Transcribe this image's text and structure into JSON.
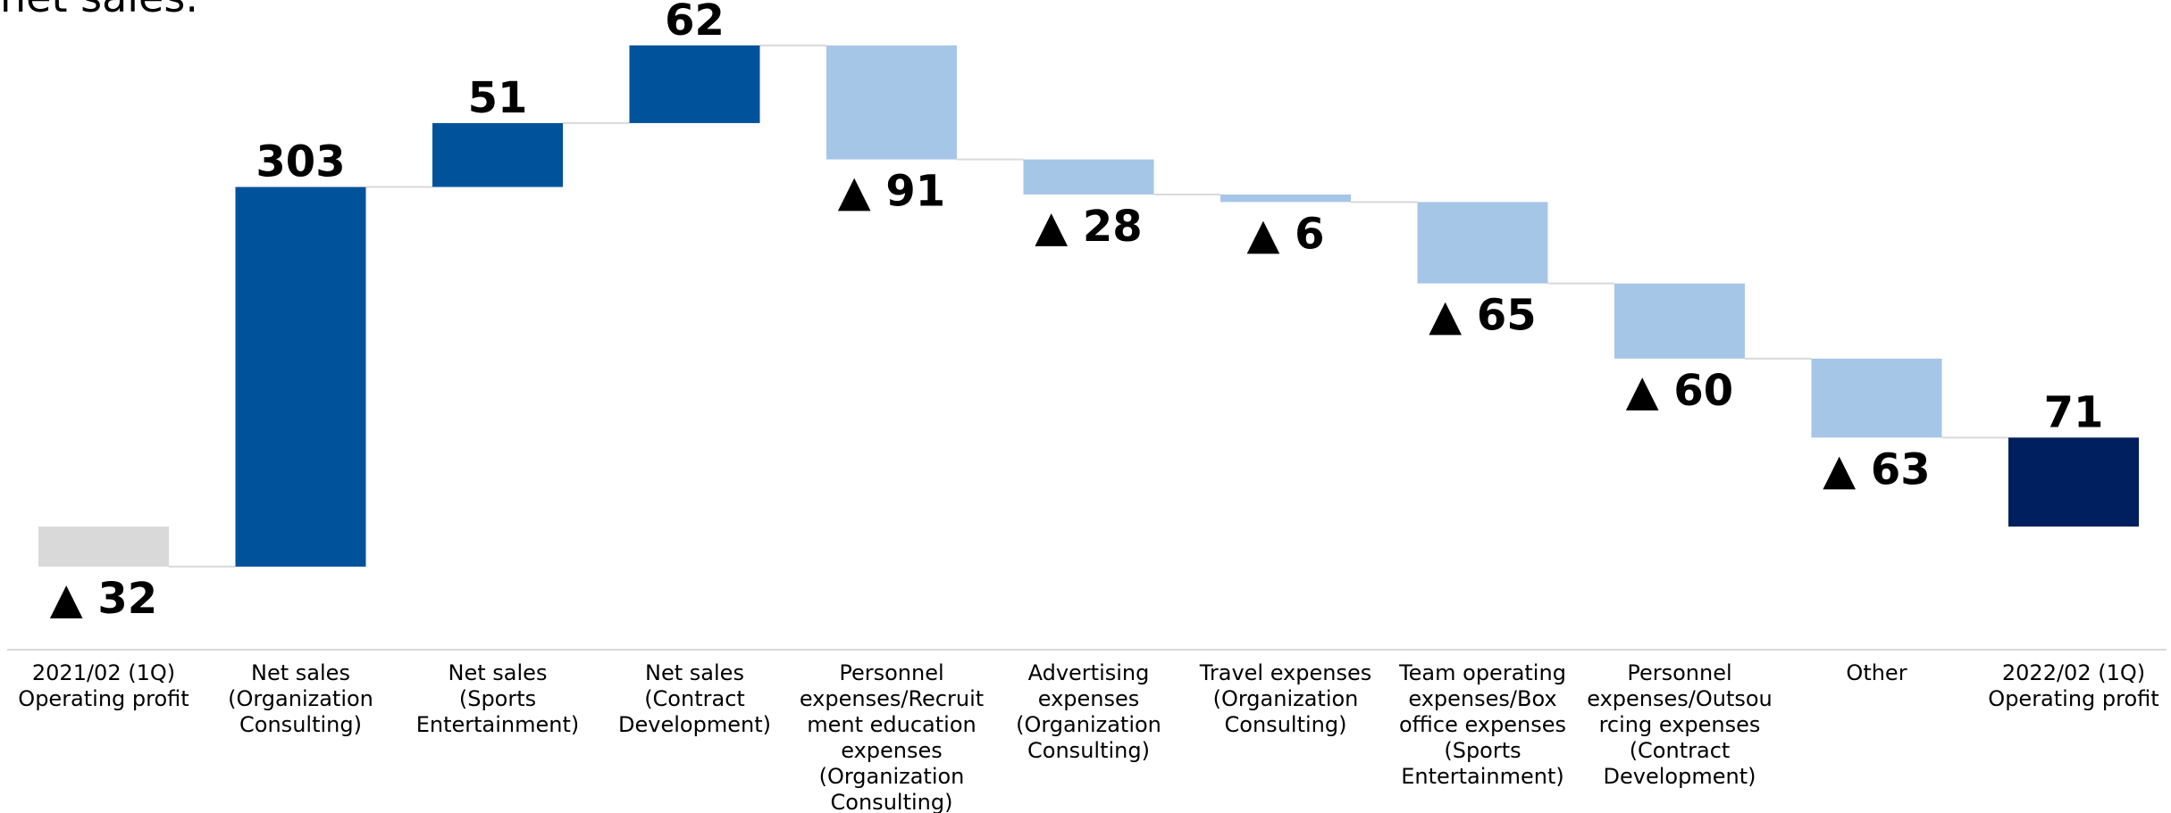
{
  "chart_data": {
    "type": "waterfall",
    "title": "net sales.",
    "categories": [
      "2021/02 (1Q)\nOperating profit",
      "Net sales\n(Organization\nConsulting)",
      "Net sales\n(Sports\nEntertainment)",
      "Net sales\n(Contract\nDevelopment)",
      "Personnel\nexpenses/Recruit\nment education\nexpenses\n(Organization\nConsulting)",
      "Advertising\nexpenses\n(Organization\nConsulting)",
      "Travel expenses\n(Organization\nConsulting)",
      "Team operating\nexpenses/Box\noffice expenses\n(Sports\nEntertainment)",
      "Personnel\nexpenses/Outsou\nrcing expenses\n(Contract\nDevelopment)",
      "Other",
      "2022/02 (1Q)\nOperating profit"
    ],
    "values": [
      -32,
      303,
      51,
      62,
      -91,
      -28,
      -6,
      -65,
      -60,
      -63,
      71
    ],
    "value_labels": [
      "▲ 32",
      "303",
      "51",
      "62",
      "▲ 91",
      "▲ 28",
      "▲ 6",
      "▲ 65",
      "▲ 60",
      "▲ 63",
      "71"
    ],
    "measures": [
      "absolute",
      "relative",
      "relative",
      "relative",
      "relative",
      "relative",
      "relative",
      "relative",
      "relative",
      "relative",
      "total"
    ],
    "colors": [
      "#d9d9d9",
      "#00529b",
      "#00529b",
      "#00529b",
      "#a6c6e8",
      "#a6c6e8",
      "#a6c6e8",
      "#a6c6e8",
      "#a6c6e8",
      "#a6c6e8",
      "#001f5e"
    ]
  }
}
